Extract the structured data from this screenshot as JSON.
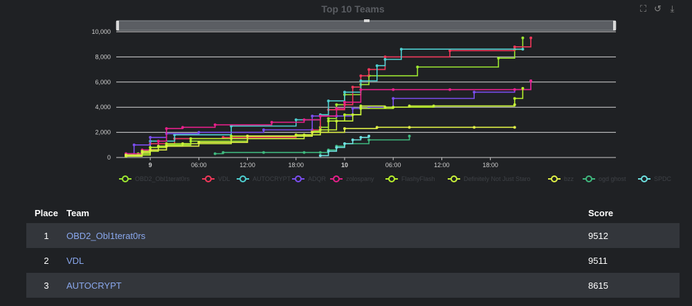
{
  "chart_data": {
    "type": "line",
    "title": "Top 10 Teams",
    "x_ticks": [
      "9",
      "06:00",
      "12:00",
      "18:00",
      "10",
      "06:00",
      "12:00",
      "18:00"
    ],
    "y_ticks": [
      "0",
      "2,000",
      "4,000",
      "6,000",
      "8,000",
      "10,000"
    ],
    "ylim": [
      0,
      10000
    ],
    "xlim_hours": [
      -4.2,
      57.5
    ],
    "legend_position": "bottom",
    "series": [
      {
        "name": "OBD2_Obl1terat0rs",
        "color": "#9ee831",
        "points": [
          [
            -3,
            200
          ],
          [
            -1.5,
            300
          ],
          [
            0,
            800
          ],
          [
            2,
            1000
          ],
          [
            5,
            1300
          ],
          [
            12,
            1700
          ],
          [
            20,
            2100
          ],
          [
            21,
            2400
          ],
          [
            22,
            3100
          ],
          [
            23,
            4200
          ],
          [
            24,
            5000
          ],
          [
            26,
            5800
          ],
          [
            27,
            6500
          ],
          [
            33,
            7200
          ],
          [
            43,
            7900
          ],
          [
            45,
            8600
          ],
          [
            46,
            9512
          ]
        ]
      },
      {
        "name": "VDL",
        "color": "#f0385a",
        "points": [
          [
            -3,
            150
          ],
          [
            -1,
            500
          ],
          [
            0,
            1100
          ],
          [
            3,
            1500
          ],
          [
            9,
            1600
          ],
          [
            18,
            1800
          ],
          [
            20,
            2200
          ],
          [
            21,
            3300
          ],
          [
            22,
            3800
          ],
          [
            24,
            4200
          ],
          [
            25,
            5600
          ],
          [
            26,
            6500
          ],
          [
            27,
            7000
          ],
          [
            29,
            8000
          ],
          [
            37,
            8500
          ],
          [
            45,
            8800
          ],
          [
            47,
            9511
          ]
        ]
      },
      {
        "name": "AUTOCRYPT",
        "color": "#4ecfd0",
        "points": [
          [
            -3,
            200
          ],
          [
            -1,
            400
          ],
          [
            0,
            1300
          ],
          [
            3,
            1800
          ],
          [
            10,
            2500
          ],
          [
            18,
            3000
          ],
          [
            21,
            3400
          ],
          [
            22,
            4500
          ],
          [
            24,
            5200
          ],
          [
            26,
            6100
          ],
          [
            28,
            7300
          ],
          [
            29,
            7800
          ],
          [
            31,
            8615
          ],
          [
            46,
            8615
          ]
        ]
      },
      {
        "name": "ADQR",
        "color": "#7b4ef0",
        "points": [
          [
            -3,
            300
          ],
          [
            -2,
            1000
          ],
          [
            0,
            1600
          ],
          [
            2,
            1900
          ],
          [
            6,
            2000
          ],
          [
            14,
            2200
          ],
          [
            20,
            3300
          ],
          [
            23,
            3300
          ],
          [
            25,
            3900
          ],
          [
            27,
            4000
          ],
          [
            30,
            4700
          ],
          [
            40,
            5200
          ],
          [
            45,
            5400
          ],
          [
            47,
            6100
          ]
        ]
      },
      {
        "name": "zolospany",
        "color": "#e6208a",
        "points": [
          [
            -3,
            300
          ],
          [
            -1,
            600
          ],
          [
            1,
            1300
          ],
          [
            2,
            2300
          ],
          [
            4,
            2400
          ],
          [
            8,
            2600
          ],
          [
            15,
            2800
          ],
          [
            19,
            3000
          ],
          [
            21,
            3300
          ],
          [
            23,
            3900
          ],
          [
            24,
            4400
          ],
          [
            26,
            5400
          ],
          [
            30,
            5400
          ],
          [
            37,
            5400
          ],
          [
            45,
            5400
          ],
          [
            47,
            6100
          ]
        ]
      },
      {
        "name": "FlashyFlash",
        "color": "#b8f02b",
        "points": [
          [
            -3,
            200
          ],
          [
            0,
            800
          ],
          [
            2,
            1100
          ],
          [
            5,
            1500
          ],
          [
            10,
            1700
          ],
          [
            18,
            1800
          ],
          [
            20,
            2000
          ],
          [
            22,
            2900
          ],
          [
            24,
            3400
          ],
          [
            26,
            3900
          ],
          [
            30,
            4000
          ],
          [
            35,
            4100
          ],
          [
            45,
            4700
          ],
          [
            46,
            5500
          ]
        ]
      },
      {
        "name": "Definitely Not Just Staro",
        "color": "#c8f03a",
        "points": [
          [
            -3,
            100
          ],
          [
            -1,
            500
          ],
          [
            1,
            900
          ],
          [
            4,
            1100
          ],
          [
            10,
            1500
          ],
          [
            19,
            1800
          ],
          [
            21,
            2200
          ],
          [
            23,
            2900
          ],
          [
            25,
            3400
          ],
          [
            26,
            4100
          ],
          [
            29,
            4000
          ],
          [
            32,
            4100
          ],
          [
            45,
            4200
          ]
        ]
      },
      {
        "name": "bzz",
        "color": "#dff046",
        "points": [
          [
            -3,
            200
          ],
          [
            -1,
            400
          ],
          [
            0,
            600
          ],
          [
            2,
            900
          ],
          [
            6,
            1200
          ],
          [
            12,
            1700
          ],
          [
            20,
            2000
          ],
          [
            24,
            2300
          ],
          [
            28,
            2400
          ],
          [
            32,
            2400
          ],
          [
            40,
            2400
          ],
          [
            45,
            2400
          ]
        ]
      },
      {
        "name": "ogd ghost",
        "color": "#3fb87e",
        "points": [
          [
            8,
            300
          ],
          [
            9,
            400
          ],
          [
            14,
            400
          ],
          [
            19,
            400
          ],
          [
            21,
            400
          ],
          [
            22,
            600
          ],
          [
            23,
            900
          ],
          [
            24,
            1100
          ],
          [
            27,
            1400
          ],
          [
            32,
            1700
          ]
        ]
      },
      {
        "name": "SPDC",
        "color": "#6ee0e0",
        "points": [
          [
            21,
            150
          ],
          [
            22,
            500
          ],
          [
            23,
            800
          ],
          [
            24,
            1100
          ],
          [
            25,
            1400
          ],
          [
            26,
            1600
          ],
          [
            27,
            1700
          ]
        ]
      }
    ]
  },
  "leaderboard": {
    "headers": {
      "place": "Place",
      "team": "Team",
      "score": "Score"
    },
    "rows": [
      {
        "place": "1",
        "team": "OBD2_Obl1terat0rs",
        "score": "9512"
      },
      {
        "place": "2",
        "team": "VDL",
        "score": "9511"
      },
      {
        "place": "3",
        "team": "AUTOCRYPT",
        "score": "8615"
      }
    ]
  }
}
